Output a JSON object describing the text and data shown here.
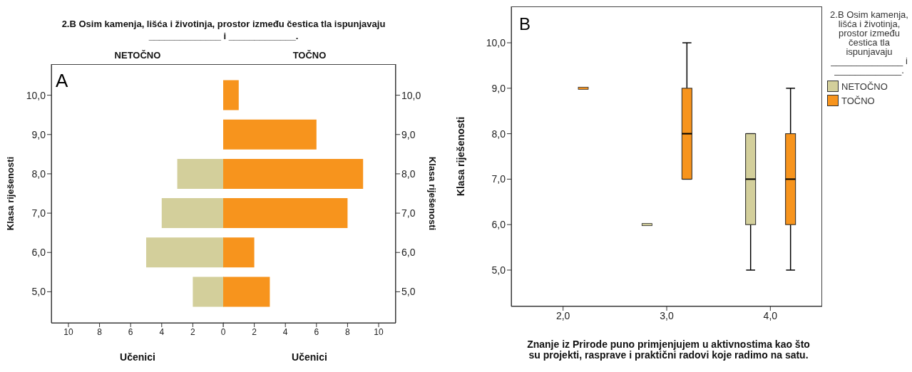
{
  "chart_data": [
    {
      "type": "bar",
      "orientation": "horizontal",
      "title": "2.B Osim kamenja, lišća i životinja, prostor između čestica tla ispunjavaju ______________ i _____________.",
      "annotations": [
        "A"
      ],
      "categories": [
        "10,0",
        "9,0",
        "8,0",
        "7,0",
        "6,0",
        "5,0"
      ],
      "series": [
        {
          "name": "NETOČNO",
          "color": "#d3cf9b",
          "values": [
            0,
            0,
            3,
            4,
            5,
            2
          ]
        }
      ],
      "xlim": [
        11.1,
        0
      ],
      "xticks": [
        10,
        8,
        6,
        4,
        2,
        {
          "value": 0,
          "label": null
        }
      ],
      "xlabel": "Učenici",
      "ylabel": "Klasa riješenosti"
    },
    {
      "type": "bar",
      "orientation": "horizontal",
      "categories": [
        "10,0",
        "9,0",
        "8,0",
        "7,0",
        "6,0",
        "5,0"
      ],
      "series": [
        {
          "name": "TOČNO",
          "color": "#f7941d",
          "values": [
            1,
            6,
            9,
            8,
            2,
            3
          ]
        }
      ],
      "xlim": [
        0,
        11.1
      ],
      "xticks": [
        0,
        2,
        4,
        6,
        8,
        10
      ],
      "xlabel": "Učenici",
      "ylabel": "Klasa riješenosti"
    },
    {
      "type": "box",
      "annotations": [
        "B"
      ],
      "categories": [
        "2,0",
        "3,0",
        "4,0"
      ],
      "series": [
        {
          "name": "NETOČNO",
          "color": "#d3cf9b",
          "boxes": [
            null,
            {
              "low": 6,
              "q1": 6,
              "median": 6,
              "q3": 6,
              "high": 6
            },
            {
              "low": 5,
              "q1": 6,
              "median": 7,
              "q3": 8,
              "high": 8
            }
          ]
        },
        {
          "name": "TOČNO",
          "color": "#f7941d",
          "boxes": [
            {
              "low": 9,
              "q1": 9,
              "median": 9,
              "q3": 9,
              "high": 9
            },
            {
              "low": 7,
              "q1": 7,
              "median": 8,
              "q3": 9,
              "high": 10
            },
            {
              "low": 5,
              "q1": 6,
              "median": 7,
              "q3": 8,
              "high": 9
            }
          ]
        }
      ],
      "ylim": [
        4.2,
        10.8
      ],
      "yticks": [
        {
          "value": 5,
          "label": "5,0"
        },
        {
          "value": 6,
          "label": "6,0"
        },
        {
          "value": 7,
          "label": "7,0"
        },
        {
          "value": 8,
          "label": "8,0"
        },
        {
          "value": 9,
          "label": "9,0"
        },
        {
          "value": 10,
          "label": "10,0"
        }
      ],
      "xlabel": "Znanje iz Prirode puno primjenjujem u aktivnostima kao što su projekti, rasprave i praktični radovi koje radimo na satu.",
      "ylabel": "Klasa riješenosti",
      "legend": "right",
      "legend_title": "2.B Osim kamenja, lišća i životinja, prostor između čestica tla ispunjavaju ______________ i _____________."
    }
  ]
}
